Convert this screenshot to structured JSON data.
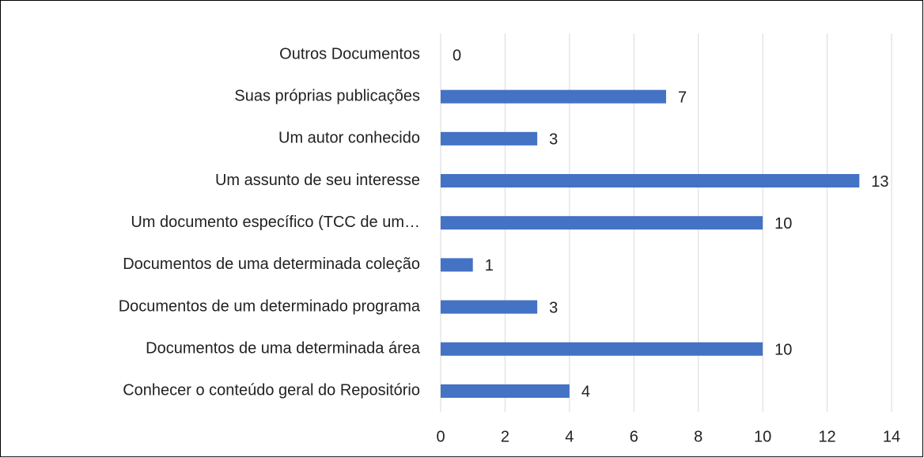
{
  "chart_data": {
    "type": "barh",
    "categories": [
      "Outros Documentos",
      "Suas próprias publicações",
      "Um autor conhecido",
      "Um assunto de seu interesse",
      "Um documento específico (TCC de um…",
      "Documentos de uma determinada coleção",
      "Documentos de um determinado programa",
      "Documentos de uma determinada área",
      "Conhecer o conteúdo geral do Repositório"
    ],
    "values": [
      0,
      7,
      3,
      13,
      10,
      1,
      3,
      10,
      4
    ],
    "color": "#4472c4",
    "xlim": [
      0,
      14
    ],
    "xticks": [
      0,
      2,
      4,
      6,
      8,
      10,
      12,
      14
    ],
    "grid": true
  }
}
